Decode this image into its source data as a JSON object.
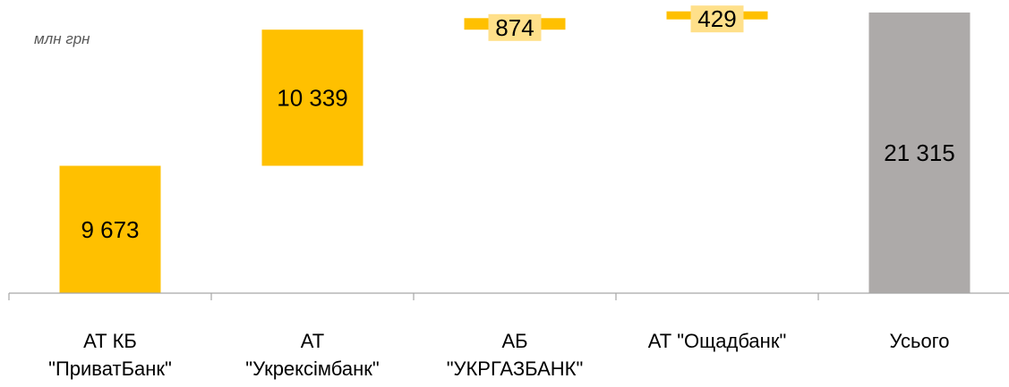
{
  "unit": "млн грн",
  "colors": {
    "bank": "#FFC000",
    "bank_light": "#FFE08A",
    "total": "#ADAAA9",
    "axis": "#A6A6A6"
  },
  "chart_data": {
    "type": "bar",
    "subtype": "waterfall",
    "ylabel": "млн грн",
    "ylim": [
      0,
      22000
    ],
    "grid": false,
    "categories": [
      [
        "АТ КБ",
        "\"ПриватБанк\""
      ],
      [
        "АТ",
        "\"Укрексімбанк\""
      ],
      [
        "АБ",
        "\"УКРГАЗБАНК\""
      ],
      [
        "АТ \"Ощадбанк\""
      ],
      [
        "Усього"
      ]
    ],
    "values": [
      9673,
      10339,
      874,
      429,
      21315
    ],
    "value_labels": [
      "9 673",
      "10 339",
      "874",
      "429",
      "21 315"
    ],
    "is_total": [
      false,
      false,
      false,
      false,
      true
    ]
  }
}
